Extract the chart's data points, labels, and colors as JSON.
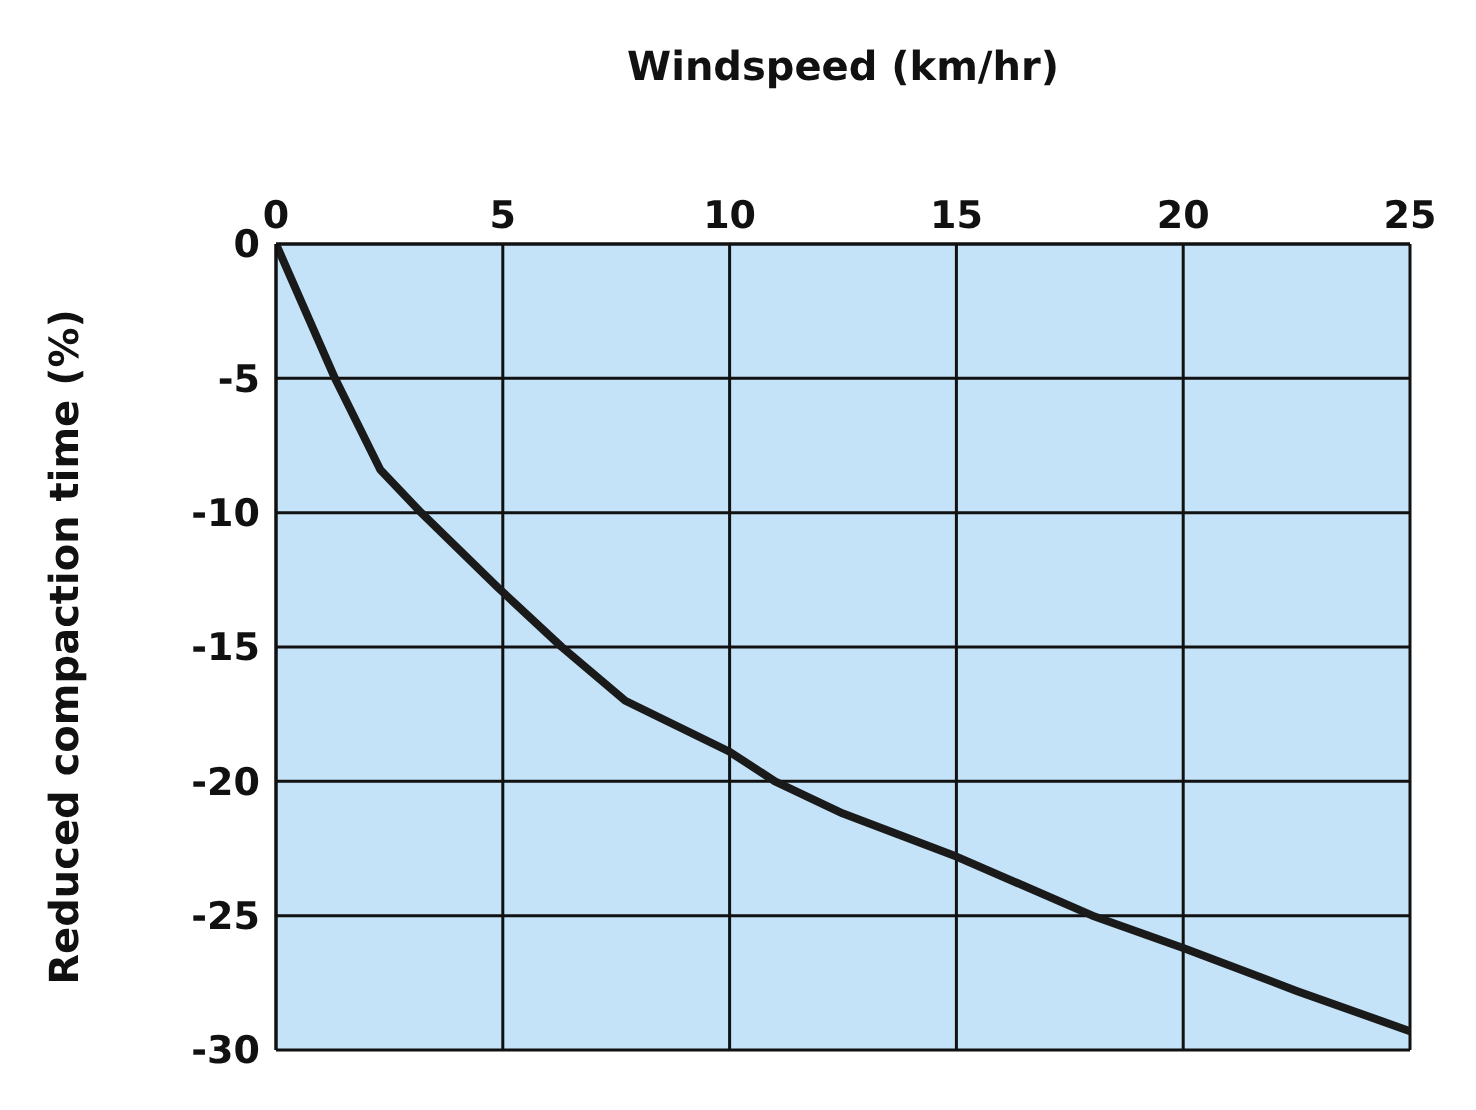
{
  "chart_data": {
    "type": "line",
    "xlabel": "Windspeed (km/hr)",
    "ylabel": "Reduced compaction time (%)",
    "series": [
      {
        "color": "#1a1a1a",
        "x": [
          0,
          1.3,
          2.3,
          3.2,
          4.9,
          6.3,
          7.7,
          10,
          11,
          12.5,
          15,
          18,
          20,
          22.5,
          25
        ],
        "values": [
          0,
          -5,
          -8.4,
          -10,
          -12.8,
          -15,
          -17,
          -18.9,
          -20,
          -21.2,
          -22.8,
          -25,
          -26.2,
          -27.8,
          -29.3
        ]
      }
    ],
    "xlim": [
      0,
      25
    ],
    "xticks": [
      0,
      5,
      10,
      15,
      20,
      25
    ],
    "ylim": [
      -30,
      0
    ],
    "yticks": [
      0,
      -5,
      -10,
      -15,
      -20,
      -25,
      -30
    ],
    "grid": true,
    "marker": "none",
    "line_style": "solid"
  }
}
